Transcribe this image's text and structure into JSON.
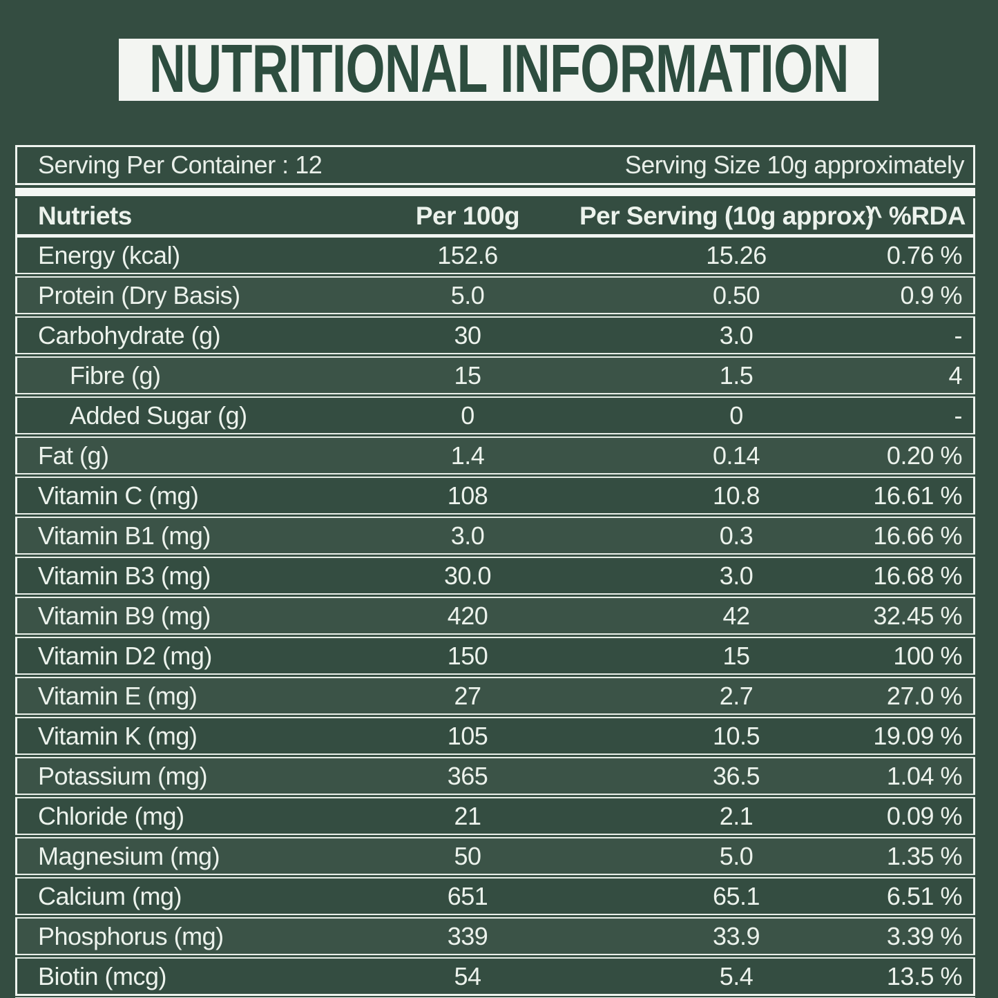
{
  "title": "NUTRITIONAL INFORMATION",
  "serving": {
    "per_container": "Serving Per Container : 12",
    "size": "Serving Size 10g approximately"
  },
  "table": {
    "headers": [
      "Nutriets",
      "Per 100g",
      "Per Serving (10g approx)",
      "^ %RDA"
    ],
    "rows": [
      {
        "nutrient": "Energy (kcal)",
        "per_100g": "152.6",
        "per_serving": "15.26",
        "rda": "0.76 %",
        "indent": false
      },
      {
        "nutrient": "Protein (Dry Basis)",
        "per_100g": "5.0",
        "per_serving": "0.50",
        "rda": "0.9 %",
        "indent": false
      },
      {
        "nutrient": "Carbohydrate (g)",
        "per_100g": "30",
        "per_serving": "3.0",
        "rda": "-",
        "indent": false
      },
      {
        "nutrient": "Fibre (g)",
        "per_100g": "15",
        "per_serving": "1.5",
        "rda": "4",
        "indent": true
      },
      {
        "nutrient": "Added Sugar (g)",
        "per_100g": "0",
        "per_serving": "0",
        "rda": "-",
        "indent": true
      },
      {
        "nutrient": "Fat (g)",
        "per_100g": "1.4",
        "per_serving": "0.14",
        "rda": "0.20 %",
        "indent": false
      },
      {
        "nutrient": "Vitamin C (mg)",
        "per_100g": "108",
        "per_serving": "10.8",
        "rda": "16.61 %",
        "indent": false
      },
      {
        "nutrient": "Vitamin B1 (mg)",
        "per_100g": "3.0",
        "per_serving": "0.3",
        "rda": "16.66 %",
        "indent": false
      },
      {
        "nutrient": "Vitamin B3 (mg)",
        "per_100g": "30.0",
        "per_serving": "3.0",
        "rda": "16.68 %",
        "indent": false
      },
      {
        "nutrient": "Vitamin B9 (mg)",
        "per_100g": "420",
        "per_serving": "42",
        "rda": "32.45 %",
        "indent": false
      },
      {
        "nutrient": "Vitamin D2 (mg)",
        "per_100g": "150",
        "per_serving": "15",
        "rda": "100 %",
        "indent": false
      },
      {
        "nutrient": "Vitamin E (mg)",
        "per_100g": "27",
        "per_serving": "2.7",
        "rda": "27.0 %",
        "indent": false
      },
      {
        "nutrient": "Vitamin K (mg)",
        "per_100g": "105",
        "per_serving": "10.5",
        "rda": "19.09 %",
        "indent": false
      },
      {
        "nutrient": "Potassium (mg)",
        "per_100g": "365",
        "per_serving": "36.5",
        "rda": "1.04 %",
        "indent": false
      },
      {
        "nutrient": "Chloride (mg)",
        "per_100g": "21",
        "per_serving": "2.1",
        "rda": "0.09 %",
        "indent": false
      },
      {
        "nutrient": "Magnesium (mg)",
        "per_100g": "50",
        "per_serving": "5.0",
        "rda": "1.35 %",
        "indent": false
      },
      {
        "nutrient": "Calcium (mg)",
        "per_100g": "651",
        "per_serving": "65.1",
        "rda": "6.51 %",
        "indent": false
      },
      {
        "nutrient": "Phosphorus (mg)",
        "per_100g": "339",
        "per_serving": "33.9",
        "rda": "3.39 %",
        "indent": false
      },
      {
        "nutrient": "Biotin (mcg)",
        "per_100g": "54",
        "per_serving": "5.4",
        "rda": "13.5 %",
        "indent": false
      }
    ]
  },
  "colors": {
    "background_green": "#344d41",
    "title_text_green": "#2d4d3f",
    "banner_white": "#f3f5f2",
    "line_white": "#eff4ef",
    "text_white": "#ecf2ec"
  }
}
